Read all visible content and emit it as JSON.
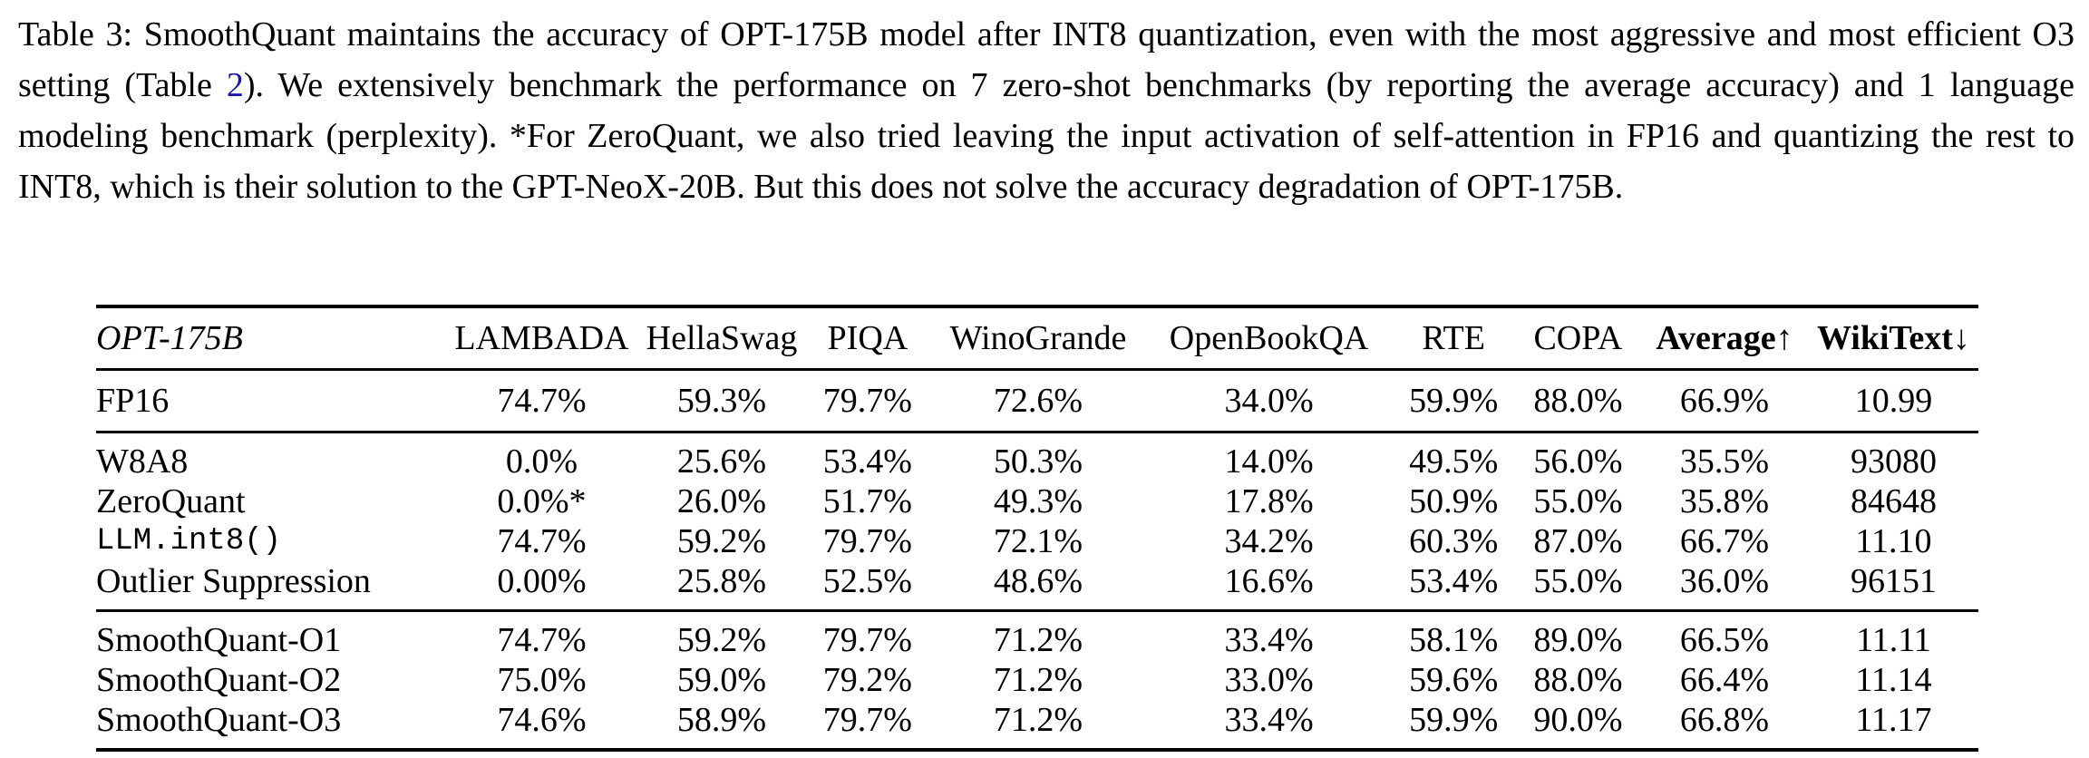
{
  "caption": {
    "part1": "Table 3: SmoothQuant maintains the accuracy of OPT-175B model after INT8 quantization, even with the most aggressive and most efficient O3 setting (Table ",
    "ref": "2",
    "part2": "). We extensively benchmark the performance on 7 zero-shot benchmarks (by reporting the average accuracy) and 1 language modeling benchmark (perplexity). *For ZeroQuant, we also tried leaving the input activation of self-attention in FP16 and quantizing the rest to INT8, which is their solution to the GPT-NeoX-20B. But this does not solve the accuracy degradation of OPT-175B."
  },
  "table": {
    "headers": [
      "OPT-175B",
      "LAMBADA",
      "HellaSwag",
      "PIQA",
      "WinoGrande",
      "OpenBookQA",
      "RTE",
      "COPA",
      "Average↑",
      "WikiText↓"
    ],
    "rows": [
      [
        "FP16",
        "74.7%",
        "59.3%",
        "79.7%",
        "72.6%",
        "34.0%",
        "59.9%",
        "88.0%",
        "66.9%",
        "10.99"
      ],
      [
        "W8A8",
        "0.0%",
        "25.6%",
        "53.4%",
        "50.3%",
        "14.0%",
        "49.5%",
        "56.0%",
        "35.5%",
        "93080"
      ],
      [
        "ZeroQuant",
        "0.0%*",
        "26.0%",
        "51.7%",
        "49.3%",
        "17.8%",
        "50.9%",
        "55.0%",
        "35.8%",
        "84648"
      ],
      [
        "LLM.int8()",
        "74.7%",
        "59.2%",
        "79.7%",
        "72.1%",
        "34.2%",
        "60.3%",
        "87.0%",
        "66.7%",
        "11.10"
      ],
      [
        "Outlier Suppression",
        "0.00%",
        "25.8%",
        "52.5%",
        "48.6%",
        "16.6%",
        "53.4%",
        "55.0%",
        "36.0%",
        "96151"
      ],
      [
        "SmoothQuant-O1",
        "74.7%",
        "59.2%",
        "79.7%",
        "71.2%",
        "33.4%",
        "58.1%",
        "89.0%",
        "66.5%",
        "11.11"
      ],
      [
        "SmoothQuant-O2",
        "75.0%",
        "59.0%",
        "79.2%",
        "71.2%",
        "33.0%",
        "59.6%",
        "88.0%",
        "66.4%",
        "11.14"
      ],
      [
        "SmoothQuant-O3",
        "74.6%",
        "58.9%",
        "79.7%",
        "71.2%",
        "33.4%",
        "59.9%",
        "90.0%",
        "66.8%",
        "11.17"
      ]
    ]
  }
}
